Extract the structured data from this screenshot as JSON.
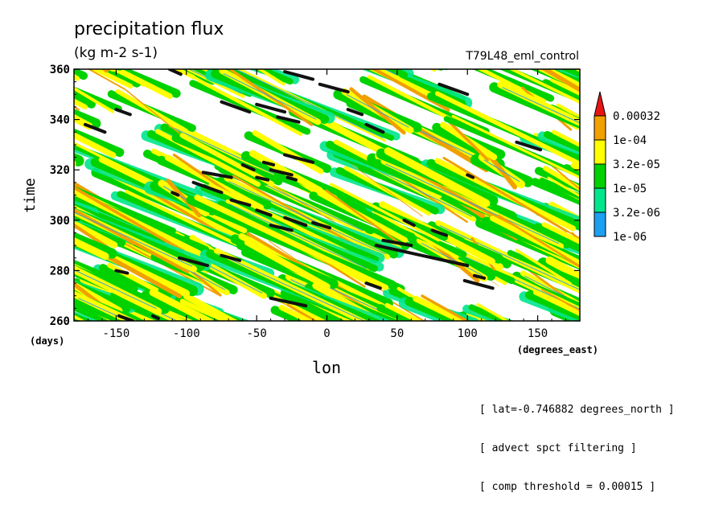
{
  "title": "precipitation flux",
  "units": "(kg m-2 s-1)",
  "run_id": "T79L48_eml_control",
  "notes": [
    "[ lat=-0.746882 degrees_north ]",
    "[ advect spct filtering ]",
    "[ comp threshold = 0.00015 ]"
  ],
  "chart_data": {
    "type": "heatmap",
    "title": "precipitation flux",
    "subtitle": "(kg m-2 s-1)",
    "xlabel": "lon",
    "xunits": "(degrees_east)",
    "ylabel": "time",
    "yunits": "(days)",
    "xlim": [
      -180,
      180
    ],
    "ylim": [
      260,
      360
    ],
    "xticks": [
      -150,
      -100,
      -50,
      0,
      50,
      100,
      150
    ],
    "yticks": [
      260,
      280,
      300,
      320,
      340,
      360
    ],
    "colorbar": {
      "levels": [
        "1e-06",
        "3.2e-06",
        "1e-05",
        "3.2e-05",
        "1e-04",
        "0.00032"
      ],
      "colors": [
        "#1ea0f0",
        "#00e68c",
        "#00d200",
        "#ffff00",
        "#f0a000",
        "#e61414"
      ]
    },
    "overlay": "black segments where flux exceeds comp threshold",
    "threshold_segments": [
      [
        -150,
        344,
        -140,
        342
      ],
      [
        -172,
        338,
        -158,
        335
      ],
      [
        -112,
        360,
        -104,
        358
      ],
      [
        -75,
        347,
        -55,
        343
      ],
      [
        -50,
        346,
        -30,
        343
      ],
      [
        -35,
        341,
        -20,
        339
      ],
      [
        -30,
        359,
        -10,
        356
      ],
      [
        -5,
        354,
        15,
        351
      ],
      [
        15,
        344,
        25,
        342
      ],
      [
        28,
        338,
        40,
        335
      ],
      [
        80,
        354,
        100,
        350
      ],
      [
        135,
        331,
        152,
        328
      ],
      [
        -30,
        326,
        -10,
        323
      ],
      [
        -88,
        319,
        -68,
        317
      ],
      [
        -60,
        322,
        -52,
        320
      ],
      [
        -40,
        320,
        -25,
        318
      ],
      [
        -50,
        317,
        -42,
        316
      ],
      [
        -28,
        317,
        -22,
        316
      ],
      [
        -95,
        315,
        -75,
        311
      ],
      [
        -68,
        308,
        -55,
        306
      ],
      [
        -110,
        311,
        -106,
        310
      ],
      [
        -50,
        304,
        -40,
        302
      ],
      [
        -30,
        301,
        -15,
        298
      ],
      [
        -40,
        298,
        -25,
        296
      ],
      [
        -10,
        299,
        2,
        297
      ],
      [
        55,
        300,
        62,
        298
      ],
      [
        75,
        296,
        85,
        294
      ],
      [
        40,
        292,
        60,
        290
      ],
      [
        35,
        290,
        100,
        282
      ],
      [
        -105,
        285,
        -85,
        282
      ],
      [
        -75,
        286,
        -62,
        284
      ],
      [
        -150,
        280,
        -142,
        279
      ],
      [
        105,
        278,
        112,
        277
      ],
      [
        98,
        276,
        118,
        273
      ],
      [
        -40,
        269,
        -15,
        266
      ],
      [
        28,
        275,
        38,
        273
      ],
      [
        -148,
        262,
        -138,
        260
      ],
      [
        -124,
        262,
        -120,
        261
      ],
      [
        100,
        318,
        104,
        317
      ],
      [
        -45,
        323,
        -38,
        322
      ]
    ]
  }
}
